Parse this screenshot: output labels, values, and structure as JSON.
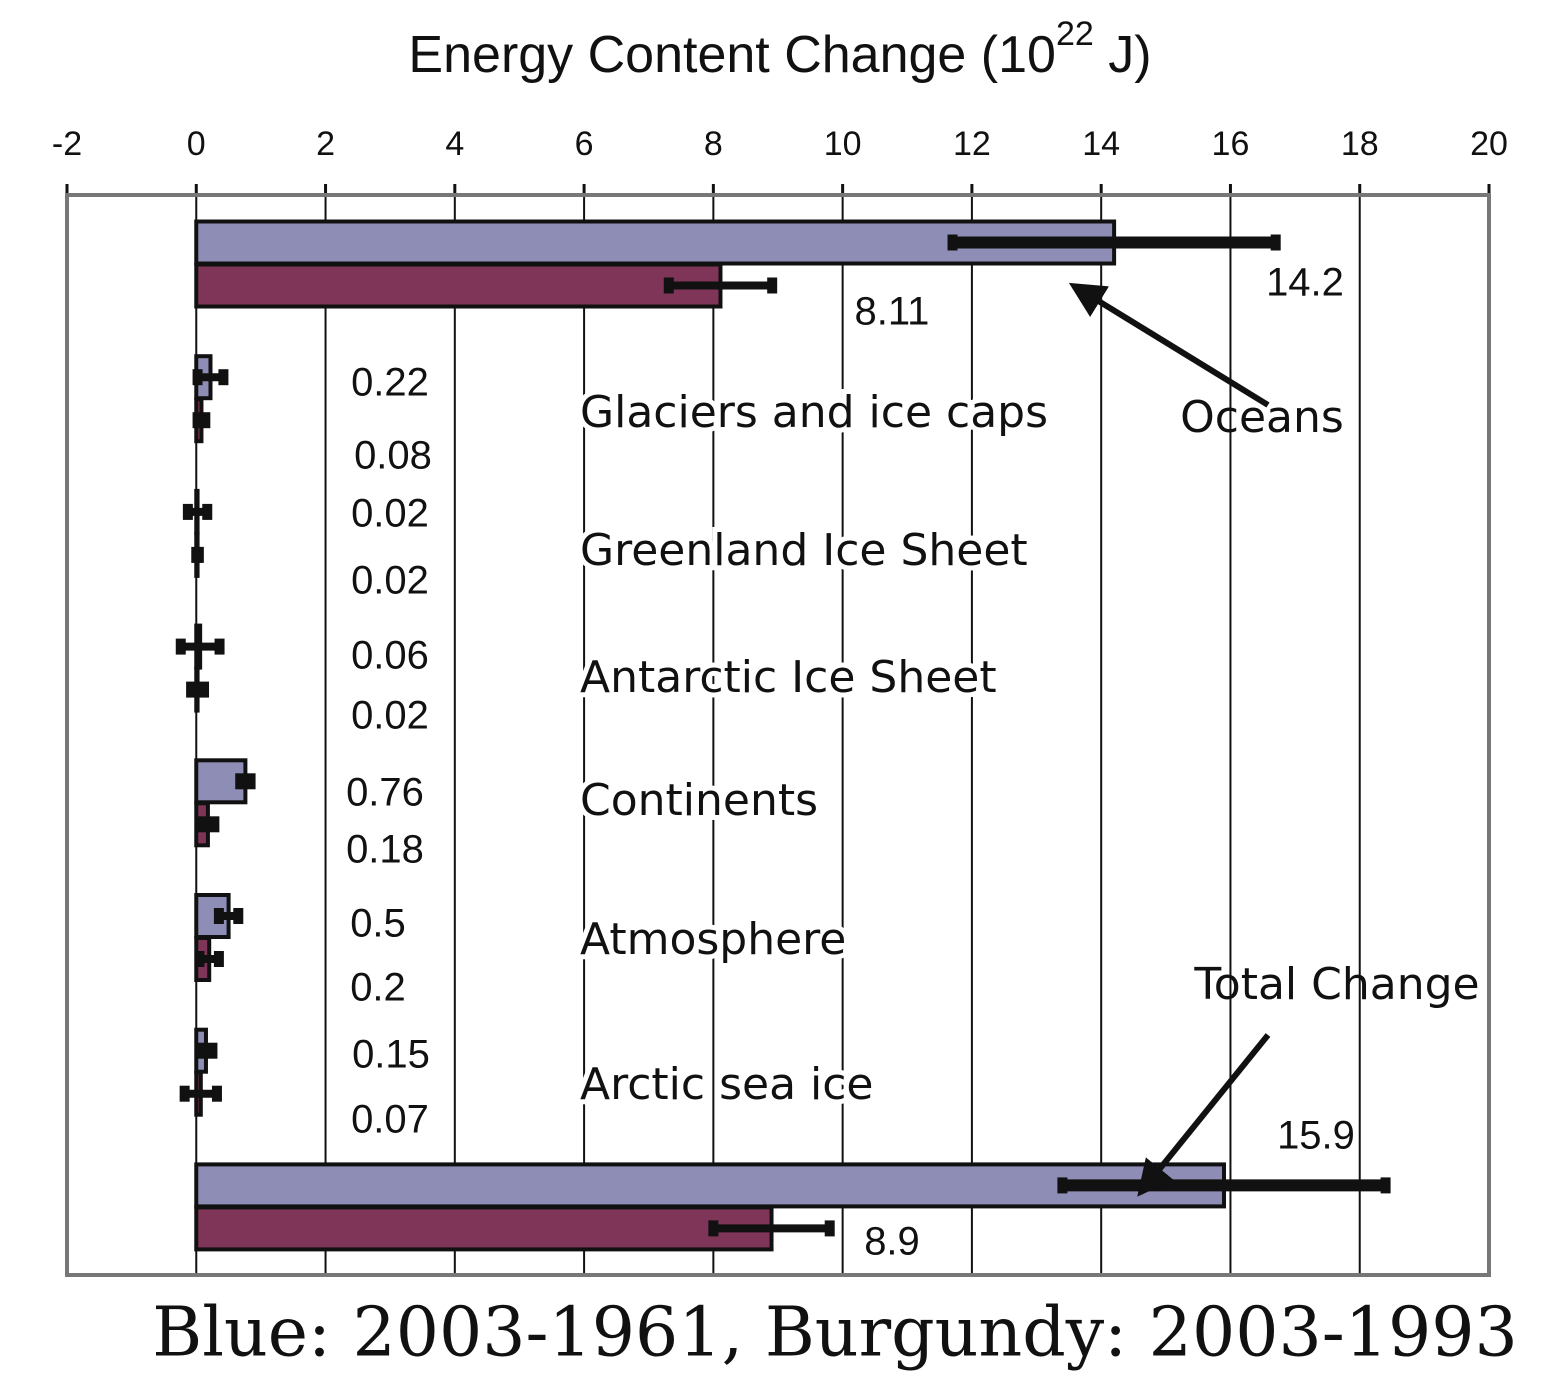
{
  "chart_data": {
    "type": "bar",
    "orientation": "horizontal",
    "title": {
      "text": "Energy Content Change (10",
      "superscript": "22",
      "suffix": " J)"
    },
    "caption": "Blue: 2003-1961,  Burgundy: 2003-1993",
    "categories": [
      "Oceans",
      "Glaciers and ice caps",
      "Greenland Ice Sheet",
      "Antarctic Ice Sheet",
      "Continents",
      "Atmosphere",
      "Arctic sea ice",
      "Total Change"
    ],
    "series": [
      {
        "color": "#8e8db5",
        "values": [
          14.2,
          0.22,
          0.02,
          0.06,
          0.76,
          0.5,
          0.15,
          15.9
        ],
        "errors": [
          2.5,
          0.2,
          0.15,
          0.3,
          0.08,
          0.15,
          0.1,
          2.5
        ]
      },
      {
        "color": "#7f3558",
        "values": [
          8.11,
          0.08,
          0.02,
          0.02,
          0.18,
          0.2,
          0.07,
          8.9
        ],
        "errors": [
          0.8,
          0.06,
          0.02,
          0.1,
          0.1,
          0.15,
          0.25,
          0.9
        ]
      }
    ],
    "xlim": [
      -2,
      20
    ],
    "xticks": [
      -2,
      0,
      2,
      4,
      6,
      8,
      10,
      12,
      14,
      16,
      18,
      20
    ],
    "grid": true
  }
}
